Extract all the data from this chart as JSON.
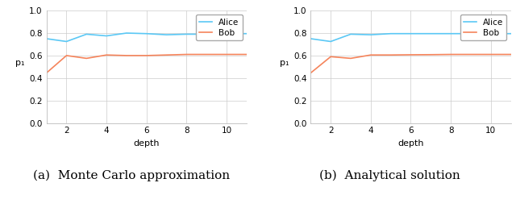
{
  "depth": [
    1,
    2,
    3,
    4,
    5,
    6,
    7,
    8,
    9,
    10,
    11
  ],
  "alice_mc": [
    0.75,
    0.725,
    0.79,
    0.775,
    0.8,
    0.795,
    0.785,
    0.79,
    0.79,
    0.795,
    0.795
  ],
  "bob_mc": [
    0.445,
    0.6,
    0.575,
    0.605,
    0.6,
    0.6,
    0.605,
    0.61,
    0.61,
    0.61,
    0.61
  ],
  "alice_analytical": [
    0.75,
    0.725,
    0.79,
    0.785,
    0.795,
    0.795,
    0.795,
    0.795,
    0.795,
    0.795,
    0.795
  ],
  "bob_analytical": [
    0.445,
    0.59,
    0.575,
    0.605,
    0.605,
    0.607,
    0.608,
    0.61,
    0.61,
    0.61,
    0.61
  ],
  "alice_color": "#5bc8f5",
  "bob_color": "#f5845b",
  "xlabel": "depth",
  "ylabel": "p₁",
  "ylim": [
    0.0,
    1.0
  ],
  "xlim": [
    1,
    11
  ],
  "xticks": [
    2,
    4,
    6,
    8,
    10
  ],
  "yticks": [
    0.0,
    0.2,
    0.4,
    0.6,
    0.8,
    1.0
  ],
  "label_a": "(a)  Monte Carlo approximation",
  "label_b": "(b)  Analytical solution",
  "legend_alice": "Alice",
  "legend_bob": "Bob",
  "linewidth": 1.2,
  "grid_color": "#cccccc",
  "grid_linewidth": 0.5,
  "caption_fontsize": 11
}
